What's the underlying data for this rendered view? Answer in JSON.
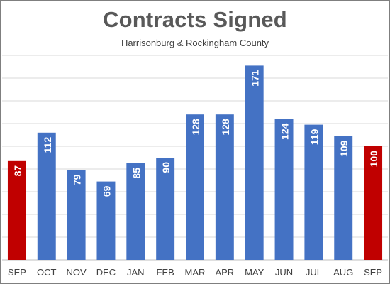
{
  "chart_data": {
    "type": "bar",
    "title": "Contracts Signed",
    "subtitle": "Harrisonburg & Rockingham County",
    "xlabel": "",
    "ylabel": "",
    "categories": [
      "SEP",
      "OCT",
      "NOV",
      "DEC",
      "JAN",
      "FEB",
      "MAR",
      "APR",
      "MAY",
      "JUN",
      "JUL",
      "AUG",
      "SEP"
    ],
    "values": [
      87,
      112,
      79,
      69,
      85,
      90,
      128,
      128,
      171,
      124,
      119,
      109,
      100
    ],
    "highlighted_indices": [
      0,
      12
    ],
    "colors": {
      "bar": "#4472c4",
      "highlight": "#c00000",
      "grid": "#d9d9d9",
      "label": "#ffffff"
    },
    "ylim": [
      0,
      180
    ],
    "grid": true,
    "legend": "none",
    "data_labels": "inside-end, rotated vertical"
  }
}
